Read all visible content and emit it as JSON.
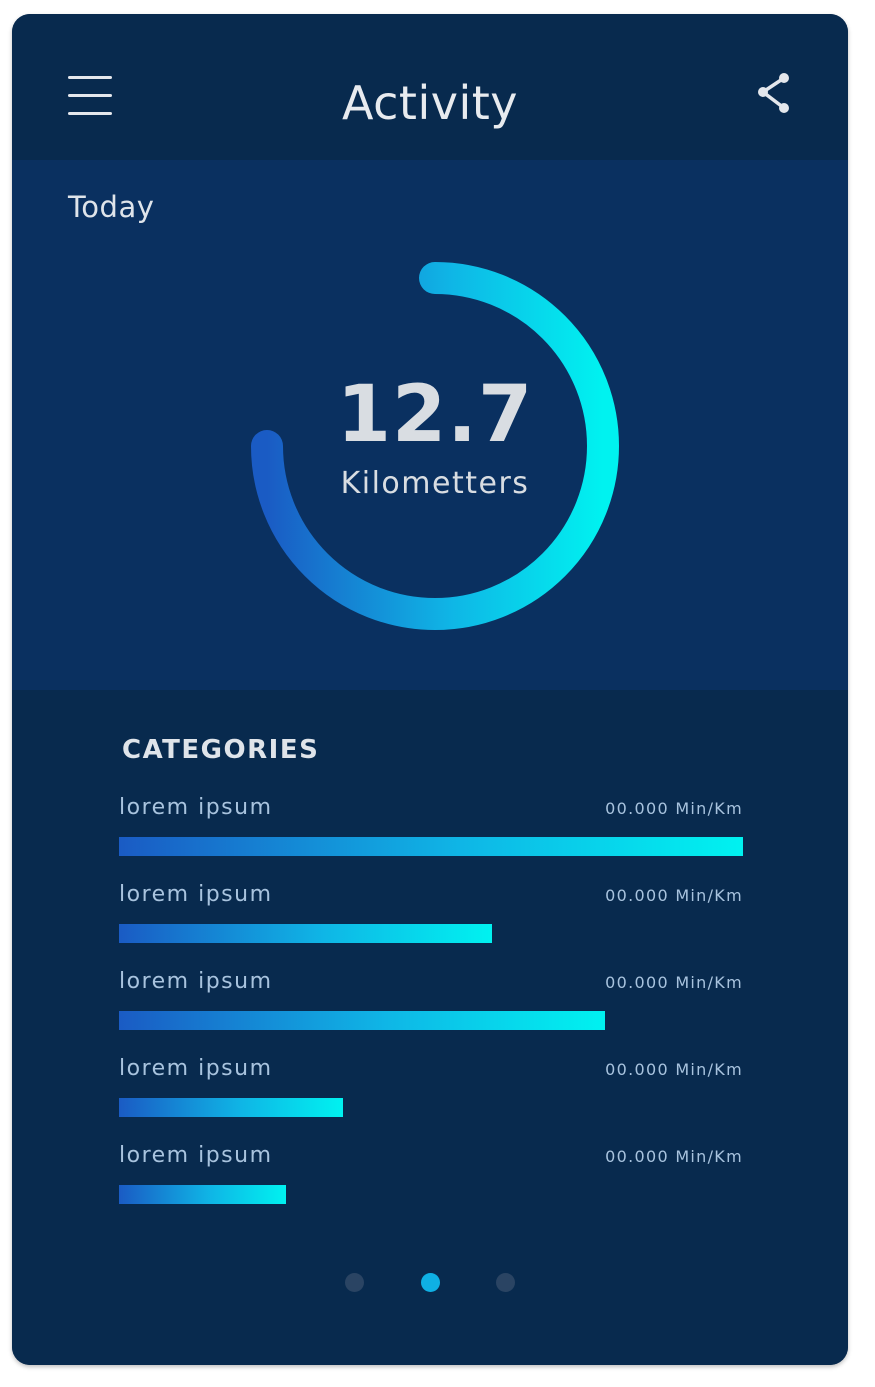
{
  "header": {
    "title": "Activity",
    "menu_icon": "hamburger-menu-icon",
    "share_icon": "share-icon"
  },
  "summary": {
    "period_label": "Today",
    "value": "12.7",
    "unit": "Kilometters",
    "progress_fraction": 0.75
  },
  "categories": {
    "heading": "CATEGORIES",
    "items": [
      {
        "label": "lorem ipsum",
        "value": "00.000 Min/Km",
        "fraction": 1.0
      },
      {
        "label": "lorem ipsum",
        "value": "00.000 Min/Km",
        "fraction": 0.597
      },
      {
        "label": "lorem ipsum",
        "value": "00.000 Min/Km",
        "fraction": 0.779
      },
      {
        "label": "lorem ipsum",
        "value": "00.000 Min/Km",
        "fraction": 0.359
      },
      {
        "label": "lorem ipsum",
        "value": "00.000 Min/Km",
        "fraction": 0.268
      }
    ]
  },
  "pager": {
    "page_count": 3,
    "active_index": 1
  },
  "colors": {
    "background": "#082a4e",
    "panel": "#0a3060",
    "accent_start": "#1a5bc4",
    "accent_end": "#00f2f0",
    "dot_inactive": "#2a4463",
    "dot_active": "#0fb0e4"
  }
}
